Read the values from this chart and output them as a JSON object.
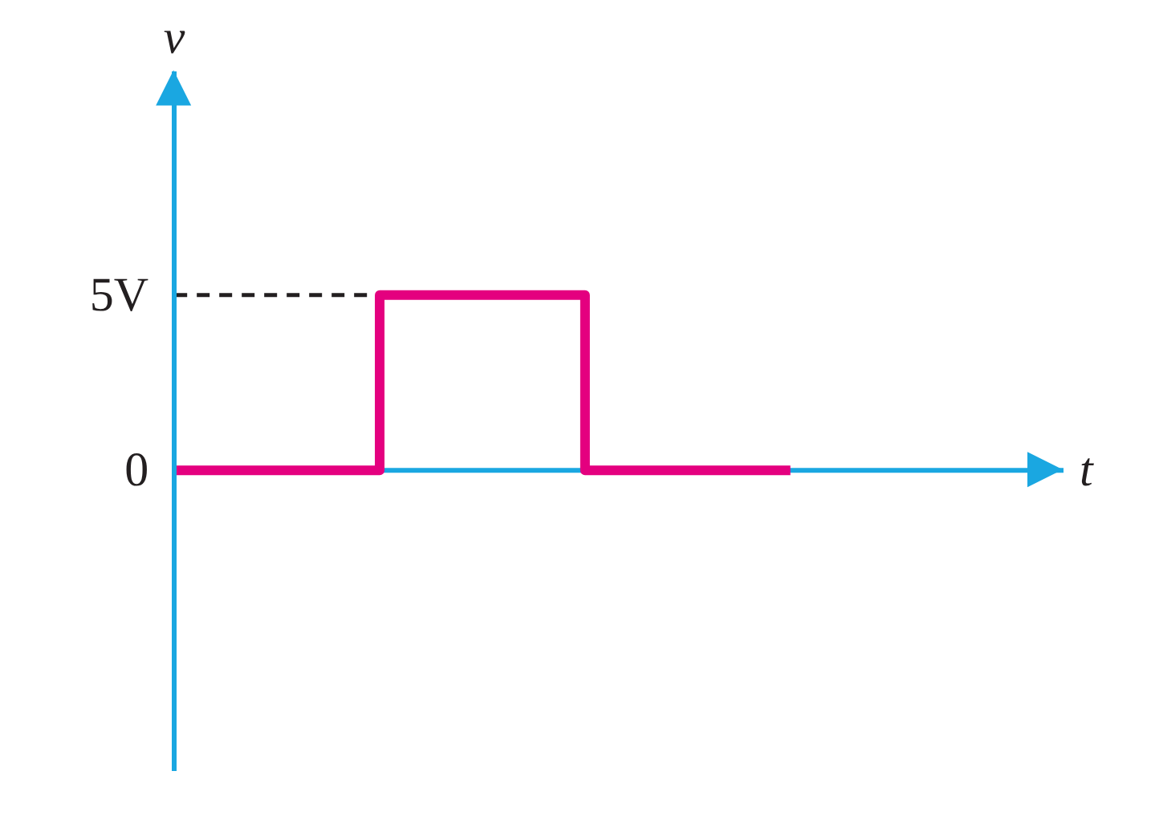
{
  "chart_data": {
    "type": "step",
    "categories": [
      null,
      null,
      null,
      null
    ],
    "values": [
      0,
      5,
      0,
      0
    ],
    "color": "#e4007f",
    "xlabel": "t",
    "ylabel": "v",
    "ylim": [
      -8.6,
      11.4
    ],
    "yticks": [
      0,
      {
        "value": 5,
        "label": "5V"
      }
    ],
    "ref_lines": [
      {
        "axis": "y",
        "value": 5,
        "color": "#231f20",
        "line_style": "dashed"
      },
      {
        "axis": "y",
        "value": 0,
        "color": "#1aa7e1",
        "line_style": "solid"
      }
    ],
    "tick_labels": "y"
  }
}
